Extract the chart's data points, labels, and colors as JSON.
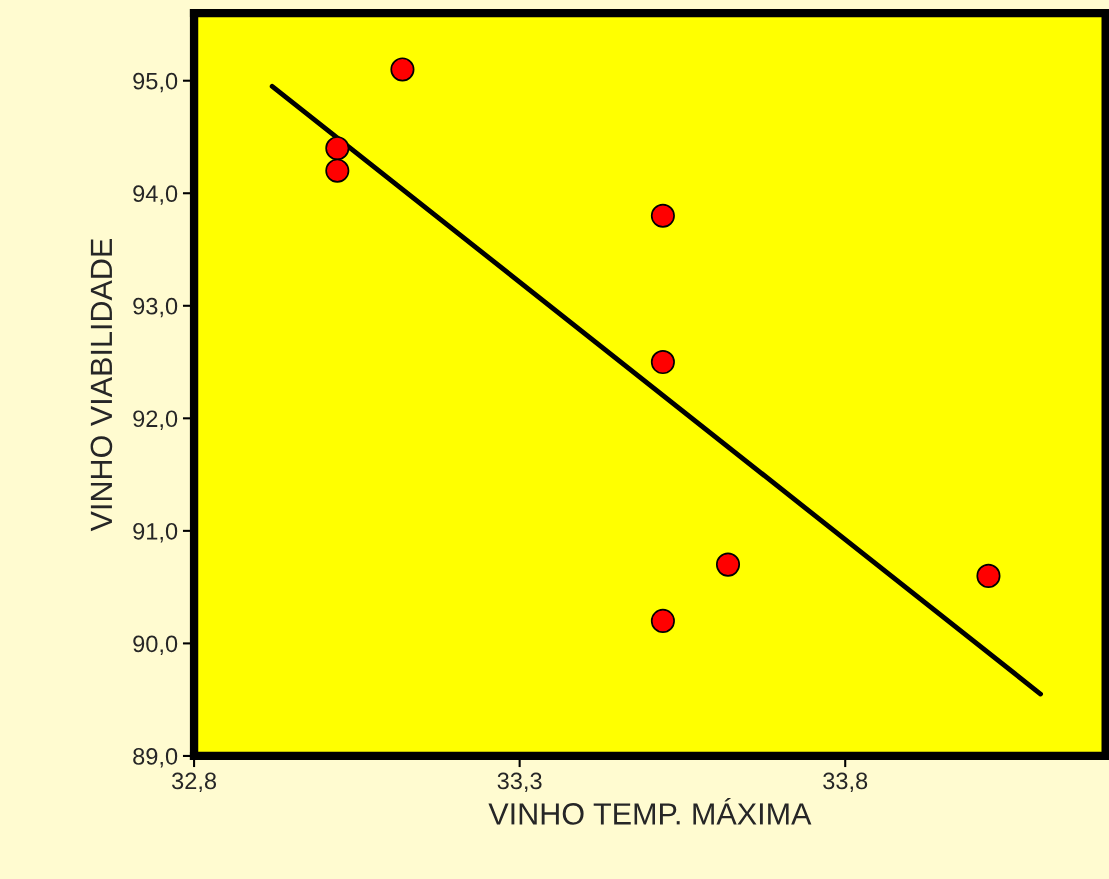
{
  "chart_data": {
    "type": "scatter",
    "xlabel": "VINHO TEMP. MÁXIMA",
    "ylabel": "VINHO VIABILIDADE",
    "xlim": [
      32.8,
      34.2
    ],
    "ylim": [
      89.0,
      95.6
    ],
    "xticks": [
      {
        "value": 32.8,
        "label": "32,8"
      },
      {
        "value": 33.3,
        "label": "33,3"
      },
      {
        "value": 33.8,
        "label": "33,8"
      }
    ],
    "yticks": [
      {
        "value": 89,
        "label": "89,0"
      },
      {
        "value": 90,
        "label": "90,0"
      },
      {
        "value": 91,
        "label": "91,0"
      },
      {
        "value": 92,
        "label": "92,0"
      },
      {
        "value": 93,
        "label": "93,0"
      },
      {
        "value": 94,
        "label": "94,0"
      },
      {
        "value": 95,
        "label": "95,0"
      }
    ],
    "grid": false,
    "legend": false,
    "series": [
      {
        "color": "#ff0000",
        "marker": "circle",
        "x": [
          33.02,
          33.02,
          33.12,
          33.52,
          33.52,
          33.52,
          33.62,
          34.02
        ],
        "values": [
          94.4,
          94.2,
          95.1,
          93.8,
          92.5,
          90.2,
          90.7,
          90.6
        ]
      },
      {
        "type": "line",
        "color": "#000000",
        "marker": "none",
        "x": [
          32.92,
          34.1
        ],
        "values": [
          94.95,
          89.55
        ]
      }
    ]
  }
}
